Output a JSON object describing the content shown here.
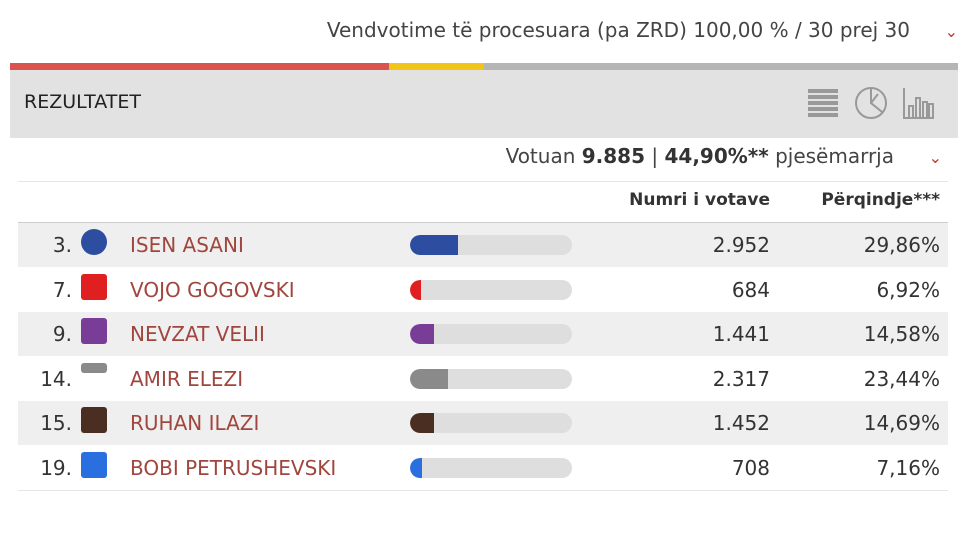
{
  "top": {
    "processed_text": "Vendvotime të procesuara (pa ZRD) 100,00 % / 30 prej 30",
    "progress": {
      "red_fraction": 0.4,
      "yellow_fraction": 0.1
    },
    "colors": {
      "red": "#d9534f",
      "yellow": "#f0c419",
      "gray": "#b5b5b5"
    }
  },
  "header": {
    "title": "REZULTATET",
    "view_icons": [
      "list-view-icon",
      "pie-chart-icon",
      "bar-chart-icon"
    ]
  },
  "turnout": {
    "prefix": "Votuan",
    "votes": "9.885",
    "sep": "|",
    "percent": "44,90%**",
    "suffix": "pjesëmarrja"
  },
  "columns": {
    "votes": "Numri i votave",
    "percent": "Përqindje***"
  },
  "rows": [
    {
      "num": "3.",
      "name": "ISEN ASANI",
      "votes": "2.952",
      "percent": "29,86%",
      "share": 29.86,
      "color": "#2d4ea0"
    },
    {
      "num": "7.",
      "name": "VOJO GOGOVSKI",
      "votes": "684",
      "percent": "6,92%",
      "share": 6.92,
      "color": "#e02020"
    },
    {
      "num": "9.",
      "name": "NEVZAT VELII",
      "votes": "1.441",
      "percent": "14,58%",
      "share": 14.58,
      "color": "#7a3d97"
    },
    {
      "num": "14.",
      "name": "AMIR ELEZI",
      "votes": "2.317",
      "percent": "23,44%",
      "share": 23.44,
      "color": "#8a8a8a"
    },
    {
      "num": "15.",
      "name": "RUHAN ILAZI",
      "votes": "1.452",
      "percent": "14,69%",
      "share": 14.69,
      "color": "#4a2e22"
    },
    {
      "num": "19.",
      "name": "BOBI PETRUSHEVSKI",
      "votes": "708",
      "percent": "7,16%",
      "share": 7.16,
      "color": "#2a6fe0"
    }
  ]
}
